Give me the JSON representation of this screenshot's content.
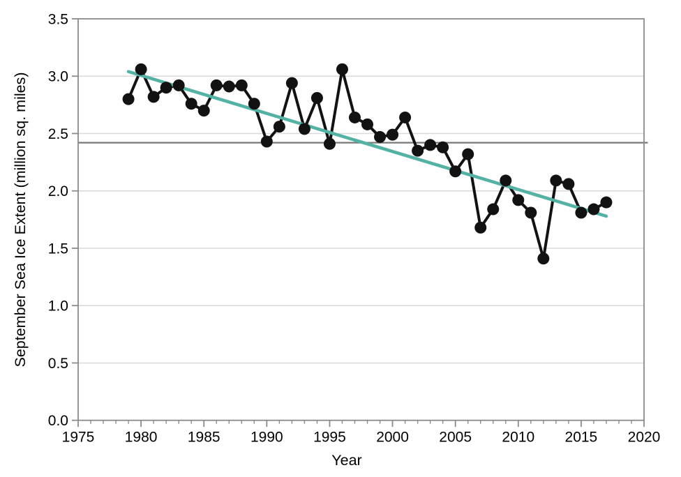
{
  "chart_data": {
    "type": "line",
    "title": "",
    "xlabel": "Year",
    "ylabel": "September Sea Ice Extent (million sq. miles)",
    "xlim": [
      1975,
      2020
    ],
    "ylim": [
      0.0,
      3.5
    ],
    "x_major_ticks": [
      1975,
      1980,
      1985,
      1990,
      1995,
      2000,
      2005,
      2010,
      2015,
      2020
    ],
    "x_minor_tick_interval": 1,
    "y_ticks": [
      0.0,
      0.5,
      1.0,
      1.5,
      2.0,
      2.5,
      3.0,
      3.5
    ],
    "grid": "horizontal",
    "legend": "none",
    "series": [
      {
        "name": "september-sea-ice-extent",
        "style": "line-with-markers",
        "x": [
          1979,
          1980,
          1981,
          1982,
          1983,
          1984,
          1985,
          1986,
          1987,
          1988,
          1989,
          1990,
          1991,
          1992,
          1993,
          1994,
          1995,
          1996,
          1997,
          1998,
          1999,
          2000,
          2001,
          2002,
          2003,
          2004,
          2005,
          2006,
          2007,
          2008,
          2009,
          2010,
          2011,
          2012,
          2013,
          2014,
          2015,
          2016,
          2017
        ],
        "values": [
          2.8,
          3.06,
          2.82,
          2.9,
          2.92,
          2.76,
          2.7,
          2.92,
          2.91,
          2.92,
          2.76,
          2.43,
          2.56,
          2.94,
          2.54,
          2.81,
          2.41,
          3.06,
          2.64,
          2.58,
          2.47,
          2.49,
          2.64,
          2.35,
          2.4,
          2.38,
          2.17,
          2.32,
          1.68,
          1.84,
          2.09,
          1.92,
          1.81,
          1.41,
          2.09,
          2.06,
          1.81,
          1.84,
          1.9
        ]
      }
    ],
    "trend_line": {
      "name": "linear-trend",
      "x1": 1979,
      "v1": 3.04,
      "x2": 2017,
      "v2": 1.78
    },
    "reference_line": {
      "name": "average-reference",
      "value": 2.42
    }
  },
  "colors": {
    "series": "#121212",
    "trend": "#54b2a5",
    "reference": "#787878",
    "grid": "#d9d9d9",
    "frame": "#8a8a8a",
    "text": "#000000",
    "background": "#ffffff"
  }
}
